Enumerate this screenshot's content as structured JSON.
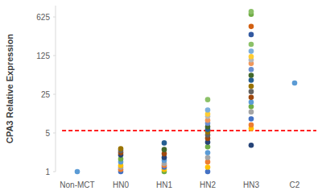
{
  "chart_data": {
    "type": "scatter",
    "y_label": "CPA3 Relative Expression",
    "categories": [
      "Non-MCT",
      "HN0",
      "HN1",
      "HN2",
      "HN3",
      "C2"
    ],
    "values": [
      [
        1
      ],
      [
        1,
        1.1,
        1.2,
        1.3,
        1.5,
        1.7,
        2,
        2.2,
        2.4,
        2.6
      ],
      [
        1,
        1.1,
        1.2,
        1.3,
        1.4,
        1.6,
        1.8,
        2.1,
        2.5,
        3.3
      ],
      [
        1,
        1.2,
        1.5,
        1.8,
        2.2,
        2.8,
        3.4,
        4,
        4.6,
        5.2,
        5.8,
        6.5,
        7.5,
        8.5,
        10,
        11,
        13,
        20
      ],
      [
        3,
        6,
        7,
        9,
        12,
        15,
        18,
        22,
        28,
        35,
        45,
        55,
        70,
        90,
        105,
        120,
        150,
        200,
        300,
        420,
        700,
        780
      ],
      [
        40
      ]
    ],
    "colors": [
      [
        "#5b9bd5"
      ],
      [
        "#4472c4",
        "#ed7d31",
        "#a5a5a5",
        "#ffc000",
        "#5b9bd5",
        "#70ad47",
        "#264478",
        "#9e480e",
        "#636363",
        "#997300"
      ],
      [
        "#70ad47",
        "#ffc000",
        "#4472c4",
        "#ed7d31",
        "#a5a5a5",
        "#5b9bd5",
        "#264478",
        "#9e480e",
        "#43682b",
        "#255e91"
      ],
      [
        "#4472c4",
        "#ffc000",
        "#ed7d31",
        "#a5a5a5",
        "#5b9bd5",
        "#70ad47",
        "#264478",
        "#9e480e",
        "#636363",
        "#997300",
        "#255e91",
        "#43682b",
        "#698ed0",
        "#f1975a",
        "#b7b7b7",
        "#ffcd33",
        "#7cafdd",
        "#8cc168"
      ],
      [
        "#264478",
        "#ffc000",
        "#ed7d31",
        "#4472c4",
        "#a5a5a5",
        "#70ad47",
        "#5b9bd5",
        "#9e480e",
        "#636363",
        "#997300",
        "#255e91",
        "#43682b",
        "#698ed0",
        "#f1975a",
        "#b7b7b7",
        "#ffcd33",
        "#7cafdd",
        "#8cc168",
        "#335aa1",
        "#d26012",
        "#70ad47",
        "#8cc168"
      ],
      [
        "#5b9bd5"
      ]
    ],
    "threshold": {
      "value": 5.5,
      "color": "#ff0000",
      "line_style": "dashed"
    },
    "log": "y",
    "ylim": [
      1,
      1000
    ],
    "yticks": [
      1,
      5,
      25,
      125,
      625
    ],
    "grid": false
  }
}
